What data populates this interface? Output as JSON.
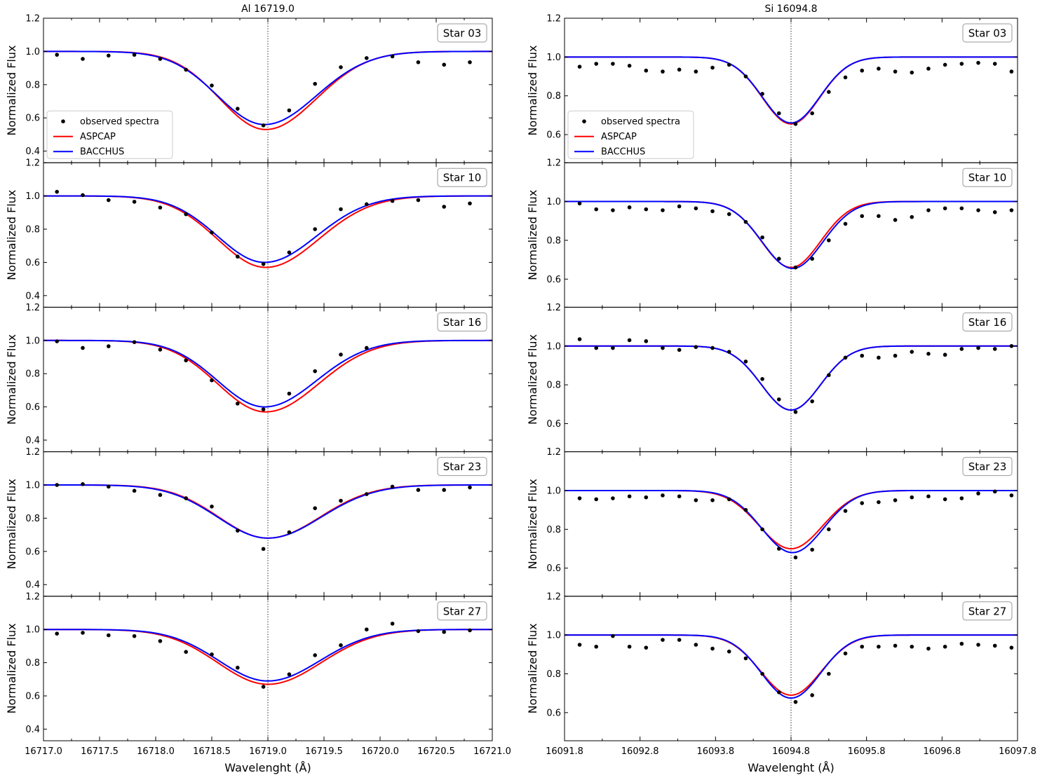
{
  "figure": {
    "columns": [
      {
        "title": "Al 16719.0",
        "xlabel": "Wavelenght (Å)",
        "xlim": [
          16717.0,
          16721.0
        ],
        "xticks": [
          "16717.0",
          "16717.5",
          "16718.0",
          "16718.5",
          "16719.0",
          "16719.5",
          "16720.0",
          "16720.5",
          "16721.0"
        ],
        "xminor_step": 0.25,
        "line_center": 16719.0,
        "ylim": [
          0.33,
          1.2
        ],
        "yticks": [
          "0.4",
          "0.6",
          "0.8",
          "1.0",
          "1.2"
        ]
      },
      {
        "title": "Si 16094.8",
        "xlabel": "Wavelenght (Å)",
        "xlim": [
          16091.8,
          16097.8
        ],
        "xticks": [
          "16091.8",
          "16092.8",
          "16093.8",
          "16094.8",
          "16095.8",
          "16096.8",
          "16097.8"
        ],
        "xminor_step": 0.5,
        "line_center": 16094.8,
        "ylim": [
          0.455,
          1.2
        ],
        "yticks": [
          "0.6",
          "0.8",
          "1.0",
          "1.2"
        ]
      }
    ],
    "ylabel": "Normalized Flux",
    "legend": {
      "location": "lower-left",
      "items": [
        {
          "label": "observed spectra",
          "kind": "point",
          "color": "#000000"
        },
        {
          "label": "ASPCAP",
          "kind": "line",
          "color": "#ff0000"
        },
        {
          "label": "BACCHUS",
          "kind": "line",
          "color": "#0000ff"
        }
      ]
    }
  },
  "chart_data": [
    {
      "type": "line",
      "column": 0,
      "row": 0,
      "star_label": "Star 03",
      "title": "Al 16719.0",
      "legend": true,
      "models": {
        "ASPCAP": {
          "depth": 0.47,
          "center": 16718.98,
          "sigma": 0.43,
          "asym": 0.05
        },
        "BACCHUS": {
          "depth": 0.44,
          "center": 16718.97,
          "sigma": 0.44,
          "asym": 0.05
        }
      },
      "observed": {
        "x": [
          16717.12,
          16717.35,
          16717.58,
          16717.81,
          16718.04,
          16718.27,
          16718.5,
          16718.73,
          16718.96,
          16719.19,
          16719.42,
          16719.65,
          16719.88,
          16720.11,
          16720.34,
          16720.57,
          16720.8
        ],
        "y": [
          0.98,
          0.955,
          0.975,
          0.98,
          0.955,
          0.89,
          0.795,
          0.655,
          0.555,
          0.645,
          0.805,
          0.905,
          0.96,
          0.97,
          0.935,
          0.92,
          0.935
        ]
      }
    },
    {
      "type": "line",
      "column": 0,
      "row": 1,
      "star_label": "Star 10",
      "title": "",
      "legend": false,
      "models": {
        "ASPCAP": {
          "depth": 0.43,
          "center": 16718.98,
          "sigma": 0.45,
          "asym": 0.05
        },
        "BACCHUS": {
          "depth": 0.4,
          "center": 16718.97,
          "sigma": 0.44,
          "asym": 0.05
        }
      },
      "observed": {
        "x": [
          16717.12,
          16717.35,
          16717.58,
          16717.81,
          16718.04,
          16718.27,
          16718.5,
          16718.73,
          16718.96,
          16719.19,
          16719.42,
          16719.65,
          16719.88,
          16720.11,
          16720.34,
          16720.57,
          16720.8
        ],
        "y": [
          1.025,
          1.005,
          0.975,
          0.965,
          0.93,
          0.89,
          0.78,
          0.635,
          0.59,
          0.66,
          0.8,
          0.92,
          0.95,
          0.97,
          0.975,
          0.935,
          0.955
        ]
      }
    },
    {
      "type": "line",
      "column": 0,
      "row": 2,
      "star_label": "Star 16",
      "title": "",
      "legend": false,
      "models": {
        "ASPCAP": {
          "depth": 0.43,
          "center": 16718.98,
          "sigma": 0.45,
          "asym": 0.05
        },
        "BACCHUS": {
          "depth": 0.4,
          "center": 16718.97,
          "sigma": 0.44,
          "asym": 0.05
        }
      },
      "observed": {
        "x": [
          16717.12,
          16717.35,
          16717.58,
          16717.81,
          16718.04,
          16718.27,
          16718.5,
          16718.73,
          16718.96,
          16719.19,
          16719.42,
          16719.65,
          16719.88
        ],
        "y": [
          0.995,
          0.955,
          0.965,
          0.99,
          0.945,
          0.88,
          0.76,
          0.62,
          0.585,
          0.68,
          0.815,
          0.915,
          0.955
        ]
      }
    },
    {
      "type": "line",
      "column": 0,
      "row": 3,
      "star_label": "Star 23",
      "title": "",
      "legend": false,
      "models": {
        "ASPCAP": {
          "depth": 0.32,
          "center": 16719.0,
          "sigma": 0.45,
          "asym": 0.03
        },
        "BACCHUS": {
          "depth": 0.32,
          "center": 16719.0,
          "sigma": 0.46,
          "asym": 0.03
        }
      },
      "observed": {
        "x": [
          16717.12,
          16717.35,
          16717.58,
          16717.81,
          16718.04,
          16718.27,
          16718.5,
          16718.73,
          16718.96,
          16719.19,
          16719.42,
          16719.65,
          16719.88,
          16720.11,
          16720.34,
          16720.57,
          16720.8
        ],
        "y": [
          1.0,
          1.005,
          0.99,
          0.965,
          0.94,
          0.92,
          0.87,
          0.725,
          0.615,
          0.715,
          0.86,
          0.905,
          0.945,
          0.99,
          0.97,
          0.97,
          0.985
        ]
      }
    },
    {
      "type": "line",
      "column": 0,
      "row": 4,
      "star_label": "Star 27",
      "title": "",
      "legend": false,
      "models": {
        "ASPCAP": {
          "depth": 0.33,
          "center": 16719.0,
          "sigma": 0.46,
          "asym": 0.03
        },
        "BACCHUS": {
          "depth": 0.31,
          "center": 16719.0,
          "sigma": 0.45,
          "asym": 0.03
        }
      },
      "observed": {
        "x": [
          16717.12,
          16717.35,
          16717.58,
          16717.81,
          16718.04,
          16718.27,
          16718.5,
          16718.73,
          16718.96,
          16719.19,
          16719.42,
          16719.65,
          16719.88,
          16720.11,
          16720.34,
          16720.57,
          16720.8
        ],
        "y": [
          0.975,
          0.98,
          0.965,
          0.96,
          0.93,
          0.865,
          0.85,
          0.77,
          0.655,
          0.73,
          0.845,
          0.905,
          1.0,
          1.035,
          0.99,
          0.985,
          0.995
        ]
      }
    },
    {
      "type": "line",
      "column": 1,
      "row": 0,
      "star_label": "Star 03",
      "title": "Si 16094.8",
      "legend": true,
      "models": {
        "ASPCAP": {
          "depth": 0.345,
          "center": 16094.8,
          "sigma": 0.38,
          "asym": 0.0
        },
        "BACCHUS": {
          "depth": 0.34,
          "center": 16094.8,
          "sigma": 0.38,
          "asym": 0.0
        }
      },
      "observed": {
        "x": [
          16092.0,
          16092.22,
          16092.44,
          16092.66,
          16092.88,
          16093.1,
          16093.32,
          16093.54,
          16093.76,
          16093.98,
          16094.2,
          16094.42,
          16094.64,
          16094.86,
          16095.08,
          16095.3,
          16095.52,
          16095.74,
          16095.96,
          16096.18,
          16096.4,
          16096.62,
          16096.84,
          16097.06,
          16097.28,
          16097.5,
          16097.72
        ],
        "y": [
          0.95,
          0.965,
          0.965,
          0.955,
          0.93,
          0.925,
          0.935,
          0.925,
          0.945,
          0.96,
          0.9,
          0.81,
          0.71,
          0.655,
          0.71,
          0.82,
          0.895,
          0.93,
          0.94,
          0.925,
          0.92,
          0.94,
          0.96,
          0.965,
          0.97,
          0.965,
          0.925
        ]
      }
    },
    {
      "type": "line",
      "column": 1,
      "row": 1,
      "star_label": "Star 10",
      "title": "",
      "legend": false,
      "models": {
        "ASPCAP": {
          "depth": 0.34,
          "center": 16094.8,
          "sigma": 0.39,
          "asym": 0.0
        },
        "BACCHUS": {
          "depth": 0.345,
          "center": 16094.82,
          "sigma": 0.4,
          "asym": 0.0
        }
      },
      "observed": {
        "x": [
          16092.0,
          16092.22,
          16092.44,
          16092.66,
          16092.88,
          16093.1,
          16093.32,
          16093.54,
          16093.76,
          16093.98,
          16094.2,
          16094.42,
          16094.64,
          16094.86,
          16095.08,
          16095.3,
          16095.52,
          16095.74,
          16095.96,
          16096.18,
          16096.4,
          16096.62,
          16096.84,
          16097.06,
          16097.28,
          16097.5,
          16097.72
        ],
        "y": [
          0.99,
          0.96,
          0.955,
          0.97,
          0.96,
          0.955,
          0.975,
          0.965,
          0.95,
          0.935,
          0.895,
          0.815,
          0.705,
          0.66,
          0.705,
          0.8,
          0.885,
          0.925,
          0.925,
          0.905,
          0.92,
          0.955,
          0.965,
          0.965,
          0.955,
          0.945,
          0.955
        ]
      }
    },
    {
      "type": "line",
      "column": 1,
      "row": 2,
      "star_label": "Star 16",
      "title": "",
      "legend": false,
      "models": {
        "ASPCAP": {
          "depth": 0.33,
          "center": 16094.8,
          "sigma": 0.39,
          "asym": 0.0
        },
        "BACCHUS": {
          "depth": 0.33,
          "center": 16094.8,
          "sigma": 0.39,
          "asym": 0.0
        }
      },
      "observed": {
        "x": [
          16092.0,
          16092.22,
          16092.44,
          16092.66,
          16092.88,
          16093.1,
          16093.32,
          16093.54,
          16093.76,
          16093.98,
          16094.2,
          16094.42,
          16094.64,
          16094.86,
          16095.08,
          16095.3,
          16095.52,
          16095.74,
          16095.96,
          16096.18,
          16096.4,
          16096.62,
          16096.84,
          16097.06,
          16097.28,
          16097.5,
          16097.72
        ],
        "y": [
          1.035,
          0.99,
          0.99,
          1.03,
          1.025,
          0.99,
          0.98,
          0.995,
          0.99,
          0.97,
          0.92,
          0.83,
          0.725,
          0.66,
          0.715,
          0.85,
          0.94,
          0.95,
          0.94,
          0.95,
          0.97,
          0.96,
          0.955,
          0.985,
          0.99,
          0.985,
          1.0
        ]
      }
    },
    {
      "type": "line",
      "column": 1,
      "row": 3,
      "star_label": "Star 23",
      "title": "",
      "legend": false,
      "models": {
        "ASPCAP": {
          "depth": 0.3,
          "center": 16094.8,
          "sigma": 0.42,
          "asym": 0.0
        },
        "BACCHUS": {
          "depth": 0.32,
          "center": 16094.82,
          "sigma": 0.41,
          "asym": 0.0
        }
      },
      "observed": {
        "x": [
          16092.0,
          16092.22,
          16092.44,
          16092.66,
          16092.88,
          16093.1,
          16093.32,
          16093.54,
          16093.76,
          16093.98,
          16094.2,
          16094.42,
          16094.64,
          16094.86,
          16095.08,
          16095.3,
          16095.52,
          16095.74,
          16095.96,
          16096.18,
          16096.4,
          16096.62,
          16096.84,
          16097.06,
          16097.28,
          16097.5,
          16097.72
        ],
        "y": [
          0.96,
          0.955,
          0.96,
          0.97,
          0.965,
          0.975,
          0.97,
          0.95,
          0.95,
          0.955,
          0.9,
          0.8,
          0.7,
          0.655,
          0.695,
          0.8,
          0.895,
          0.935,
          0.94,
          0.95,
          0.965,
          0.97,
          0.955,
          0.96,
          0.985,
          0.995,
          0.975
        ]
      }
    },
    {
      "type": "line",
      "column": 1,
      "row": 4,
      "star_label": "Star 27",
      "title": "",
      "legend": false,
      "models": {
        "ASPCAP": {
          "depth": 0.31,
          "center": 16094.8,
          "sigma": 0.4,
          "asym": 0.0
        },
        "BACCHUS": {
          "depth": 0.325,
          "center": 16094.8,
          "sigma": 0.39,
          "asym": 0.0
        }
      },
      "observed": {
        "x": [
          16092.0,
          16092.22,
          16092.44,
          16092.66,
          16092.88,
          16093.1,
          16093.32,
          16093.54,
          16093.76,
          16093.98,
          16094.2,
          16094.42,
          16094.64,
          16094.86,
          16095.08,
          16095.3,
          16095.52,
          16095.74,
          16095.96,
          16096.18,
          16096.4,
          16096.62,
          16096.84,
          16097.06,
          16097.28,
          16097.5,
          16097.72
        ],
        "y": [
          0.95,
          0.94,
          0.995,
          0.94,
          0.935,
          0.975,
          0.975,
          0.95,
          0.93,
          0.915,
          0.88,
          0.8,
          0.705,
          0.655,
          0.69,
          0.8,
          0.905,
          0.94,
          0.94,
          0.945,
          0.94,
          0.93,
          0.94,
          0.955,
          0.95,
          0.945,
          0.935
        ]
      }
    }
  ]
}
